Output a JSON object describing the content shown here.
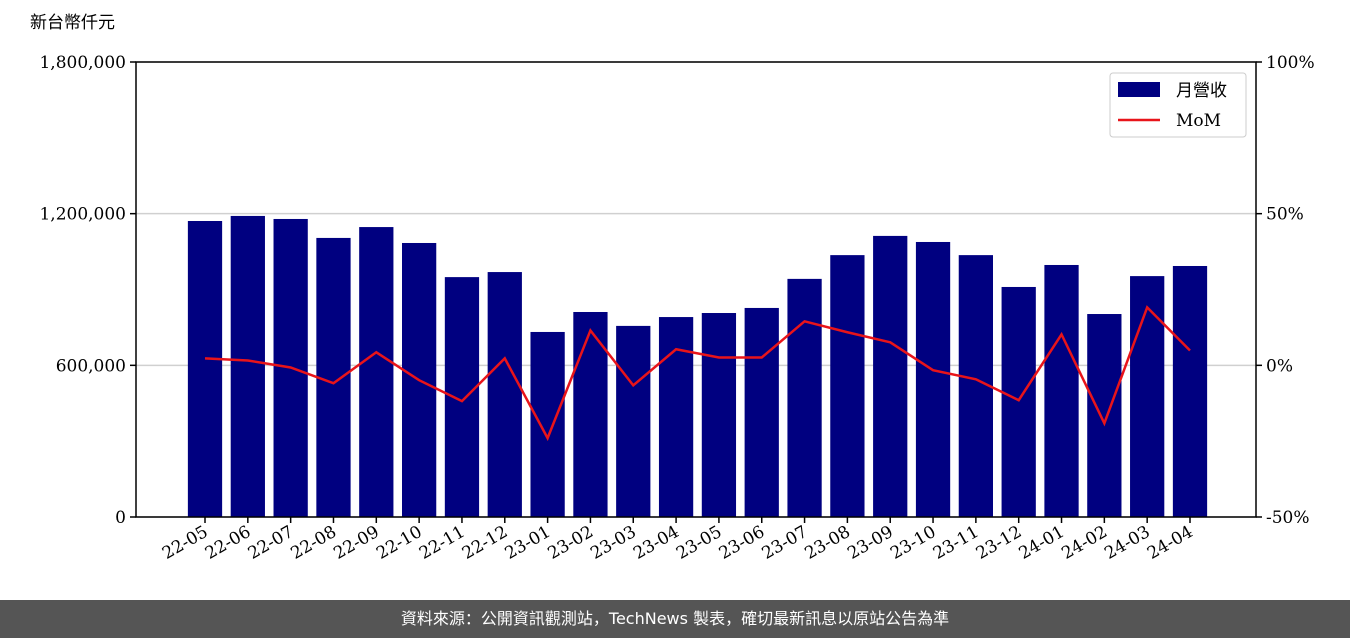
{
  "chart_data": {
    "type": "bar",
    "y_label": "新台幣仟元",
    "categories": [
      "22-05",
      "22-06",
      "22-07",
      "22-08",
      "22-09",
      "22-10",
      "22-11",
      "22-12",
      "23-01",
      "23-02",
      "23-03",
      "23-04",
      "23-05",
      "23-06",
      "23-07",
      "23-08",
      "23-09",
      "23-10",
      "23-11",
      "23-12",
      "24-01",
      "24-02",
      "24-03",
      "24-04"
    ],
    "series": [
      {
        "name": "月營收",
        "type": "bar",
        "color": "#000080",
        "values": [
          1171000,
          1191000,
          1179000,
          1104000,
          1147000,
          1084000,
          949000,
          969000,
          732000,
          811000,
          756000,
          791000,
          807000,
          827000,
          942000,
          1036000,
          1112000,
          1088000,
          1036000,
          910000,
          997000,
          803000,
          953000,
          993000
        ]
      },
      {
        "name": "MoM",
        "type": "line",
        "axis": "y2",
        "color": "#e8141a",
        "values": [
          2.3,
          1.6,
          -0.7,
          -5.9,
          4.3,
          -4.9,
          -11.8,
          2.3,
          -24.0,
          11.5,
          -6.6,
          5.3,
          2.6,
          2.6,
          14.5,
          10.9,
          7.6,
          -1.6,
          -4.6,
          -11.5,
          10.2,
          -19.1,
          19.1,
          4.9
        ]
      }
    ],
    "ylim": [
      0,
      1800000
    ],
    "yticks": [
      {
        "value": 0,
        "label": "0"
      },
      {
        "value": 600000,
        "label": "600,000"
      },
      {
        "value": 1200000,
        "label": "1,200,000"
      },
      {
        "value": 1800000,
        "label": "1,800,000"
      }
    ],
    "y2lim": [
      -50,
      100
    ],
    "y2ticks": [
      {
        "value": -50,
        "label": "-50%"
      },
      {
        "value": 0,
        "label": "0%"
      },
      {
        "value": 50,
        "label": "50%"
      },
      {
        "value": 100,
        "label": "100%"
      }
    ],
    "grid": true,
    "legend": "upper right"
  },
  "footer": "資料來源：公開資訊觀測站，TechNews 製表，確切最新訊息以原站公告為準"
}
